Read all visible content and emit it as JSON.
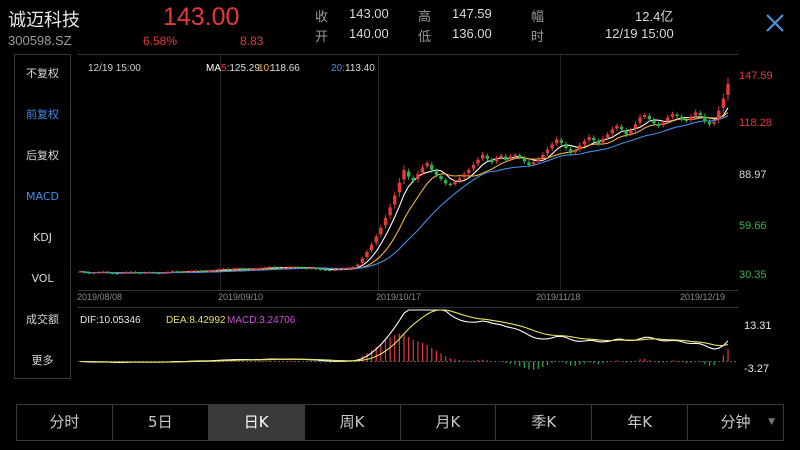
{
  "stock": {
    "name": "诚迈科技",
    "code": "300598.SZ",
    "price": "143.00",
    "pct_change": "6.58%",
    "change": "8.83"
  },
  "quote": [
    {
      "label": "收",
      "value": "143.00"
    },
    {
      "label": "开",
      "value": "140.00"
    },
    {
      "label": "高",
      "value": "147.59"
    },
    {
      "label": "低",
      "value": "136.00"
    },
    {
      "label": "幅",
      "value": "12.4亿"
    },
    {
      "label": "时",
      "value": "12/19 15:00"
    }
  ],
  "side_menu": [
    "不复权",
    "前复权",
    "后复权",
    "MACD",
    "KDJ",
    "VOL",
    "成交额",
    "更多"
  ],
  "tabs": [
    "分时",
    "5日",
    "日K",
    "周K",
    "月K",
    "季K",
    "年K",
    "分钟"
  ],
  "colors": {
    "up": "#e5393a",
    "down": "#2fb34a",
    "accent": "#3d8ee8",
    "ma5": "#ffffff",
    "ma10": "#f3b13c",
    "ma20": "#3f8fea"
  },
  "icons": {
    "close": "close-icon",
    "dropdown": "caret-down-icon"
  },
  "chart_data": {
    "type": "candlestick",
    "timestamp": "12/19 15:00",
    "ma_legend": [
      {
        "label": "MA5:",
        "value": "125.29"
      },
      {
        "label": "10:",
        "value": "118.66"
      },
      {
        "label": "20:",
        "value": "113.40"
      }
    ],
    "price_axis": [
      "147.59",
      "118.28",
      "88.97",
      "59.66",
      "30.35"
    ],
    "price_range": [
      30.35,
      147.59
    ],
    "x_labels": [
      "2019/08/08",
      "2019/09/10",
      "2019/10/17",
      "2019/11/18",
      "2019/12/19"
    ],
    "macd_legend": {
      "dif": "DIF:10.05346",
      "dea": "DEA:8.42992",
      "macd": "MACD:3.24706"
    },
    "macd_axis": [
      "13.31",
      "-3.27"
    ],
    "macd_range": [
      -3.27,
      13.31
    ],
    "close": [
      31.8,
      31.2,
      30.9,
      31.0,
      31.3,
      31.6,
      31.1,
      30.7,
      30.6,
      31.0,
      31.4,
      31.6,
      31.2,
      30.9,
      31.1,
      31.3,
      31.0,
      30.8,
      31.0,
      31.5,
      32.0,
      31.8,
      31.4,
      31.7,
      32.1,
      32.3,
      32.0,
      31.8,
      32.2,
      32.7,
      33.1,
      33.4,
      33.0,
      33.3,
      33.6,
      33.2,
      32.9,
      33.2,
      33.5,
      33.8,
      34.2,
      34.5,
      34.1,
      33.8,
      34.0,
      34.3,
      34.6,
      34.2,
      33.9,
      33.6,
      33.8,
      33.4,
      33.1,
      32.8,
      32.6,
      32.9,
      33.2,
      33.5,
      33.8,
      34.5,
      36.0,
      39.5,
      43.4,
      47.7,
      52.5,
      57.7,
      63.5,
      69.8,
      76.8,
      84.5,
      92.0,
      88.0,
      85.5,
      89.5,
      93.5,
      96.0,
      92.0,
      89.0,
      86.5,
      84.0,
      83.0,
      85.0,
      87.0,
      89.5,
      92.0,
      95.0,
      98.0,
      101.0,
      98.5,
      96.5,
      99.0,
      100.5,
      98.0,
      100.0,
      101.0,
      99.5,
      97.0,
      95.0,
      96.5,
      98.5,
      101.0,
      104.0,
      107.0,
      110.0,
      108.0,
      105.0,
      102.0,
      103.5,
      106.5,
      109.0,
      111.5,
      109.5,
      107.5,
      110.5,
      113.0,
      116.0,
      118.0,
      116.0,
      113.0,
      115.5,
      119.0,
      123.0,
      124.5,
      122.0,
      119.5,
      118.0,
      120.0,
      123.0,
      125.0,
      124.0,
      122.0,
      121.0,
      123.5,
      126.0,
      124.5,
      121.0,
      119.0,
      120.5,
      127.0,
      134.17,
      143.0
    ],
    "macd_hist": [
      0.2,
      0.1,
      -0.1,
      -0.2,
      -0.3,
      -0.3,
      -0.2,
      -0.3,
      -0.4,
      -0.3,
      -0.2,
      -0.1,
      -0.2,
      -0.3,
      -0.2,
      -0.1,
      -0.2,
      -0.2,
      -0.1,
      0,
      0.1,
      0,
      -0.1,
      0,
      0.1,
      0.1,
      0,
      -0.1,
      0,
      0.1,
      0.2,
      0.2,
      0.1,
      0.1,
      0.2,
      0.1,
      0,
      0.1,
      0.1,
      0.2,
      0.2,
      0.3,
      0.2,
      0.1,
      0.1,
      0.2,
      0.2,
      0.1,
      0,
      -0.1,
      -0.1,
      -0.2,
      -0.3,
      -0.3,
      -0.3,
      -0.2,
      -0.1,
      0,
      0.1,
      0.3,
      0.7,
      1.4,
      2.2,
      3.0,
      3.8,
      4.6,
      5.4,
      6.2,
      6.8,
      7.2,
      7.0,
      6.3,
      5.6,
      5.2,
      4.8,
      4.3,
      3.5,
      2.8,
      2.1,
      1.4,
      0.9,
      0.6,
      0.4,
      0.3,
      0.2,
      0.3,
      0.4,
      0.5,
      0.3,
      0.1,
      0.0,
      -0.1,
      -0.4,
      -0.6,
      -0.8,
      -1.2,
      -1.6,
      -2.0,
      -2.1,
      -1.9,
      -1.4,
      -0.9,
      -0.4,
      0.0,
      -0.2,
      -0.6,
      -1.0,
      -1.1,
      -0.8,
      -0.5,
      -0.3,
      -0.5,
      -0.7,
      -0.5,
      -0.2,
      0.1,
      0.3,
      0.1,
      -0.3,
      -0.2,
      0.2,
      0.6,
      0.7,
      0.4,
      0.0,
      -0.3,
      -0.2,
      0.1,
      0.3,
      0.2,
      -0.1,
      -0.4,
      -0.3,
      0.0,
      -0.2,
      -0.7,
      -1.1,
      -1.0,
      0.0,
      1.6,
      3.25
    ]
  }
}
